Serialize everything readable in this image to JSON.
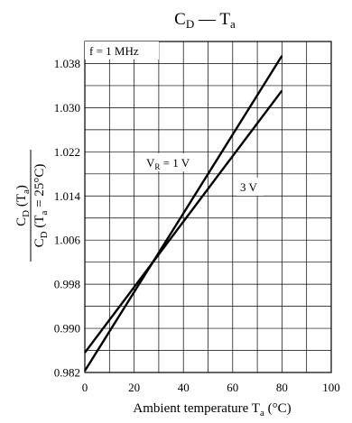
{
  "chart_data": {
    "type": "line",
    "title": {
      "main": "C",
      "main_sub": "D",
      "dash": " — ",
      "var": "T",
      "var_sub": "a"
    },
    "xlabel": {
      "text": "Ambient temperature  T",
      "sub": "a",
      "unit": "  (°C)"
    },
    "ylabel": {
      "numerator": {
        "text": "C",
        "sub": "D",
        "arg_open": " (T",
        "arg_sub": "a",
        "arg_close": ")"
      },
      "denominator": {
        "text": "C",
        "sub": "D",
        "arg_open": " (T",
        "arg_sub": "a",
        "arg_close": " = 25°C)"
      }
    },
    "xlim": [
      0,
      100
    ],
    "ylim": [
      0.982,
      1.042
    ],
    "x_ticks": [
      "0",
      "20",
      "40",
      "60",
      "80",
      "100"
    ],
    "x_tick_values": [
      0,
      20,
      40,
      60,
      80,
      100
    ],
    "y_ticks": [
      "0.982",
      "0.990",
      "0.998",
      "1.006",
      "1.014",
      "1.022",
      "1.030",
      "1.038"
    ],
    "y_tick_values": [
      0.982,
      0.99,
      0.998,
      1.006,
      1.014,
      1.022,
      1.03,
      1.038
    ],
    "grid": true,
    "annotation": "f = 1 MHz",
    "series": [
      {
        "label": {
          "text": "V",
          "sub": "R",
          "rest": " = 1 V"
        },
        "x": [
          0,
          80
        ],
        "y": [
          0.9823,
          1.0394
        ]
      },
      {
        "label": {
          "text": "3 V"
        },
        "x": [
          0,
          80
        ],
        "y": [
          0.9856,
          1.0331
        ]
      }
    ]
  }
}
